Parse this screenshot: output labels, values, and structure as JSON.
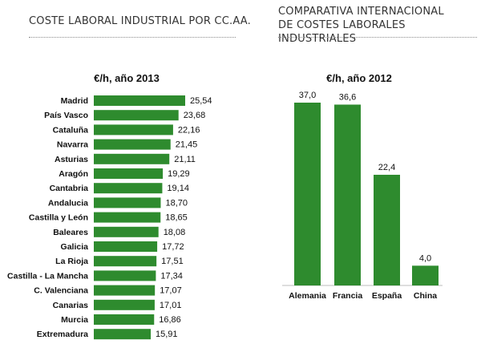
{
  "left_panel": {
    "heading": "COSTE LABORAL INDUSTRIAL POR CC.AA."
  },
  "right_panel": {
    "heading_line1": "COMPARATIVA INTERNACIONAL",
    "heading_line2": "DE COSTES LABORALES INDUSTRIALES"
  },
  "bar_color": "#2e8b2e",
  "chart_data": [
    {
      "type": "bar",
      "orientation": "horizontal",
      "title": "€/h, año 2013",
      "categories": [
        "Madrid",
        "País Vasco",
        "Cataluña",
        "Navarra",
        "Asturias",
        "Aragón",
        "Cantabria",
        "Andalucia",
        "Castilla y León",
        "Baleares",
        "Galicia",
        "La Rioja",
        "Castilla  - La Mancha",
        "C. Valenciana",
        "Canarias",
        "Murcia",
        "Extremadura"
      ],
      "values": [
        25.54,
        23.68,
        22.16,
        21.45,
        21.11,
        19.29,
        19.14,
        18.7,
        18.65,
        18.08,
        17.72,
        17.51,
        17.34,
        17.07,
        17.01,
        16.86,
        15.91
      ],
      "value_labels": [
        "25,54",
        "23,68",
        "22,16",
        "21,45",
        "21,11",
        "19,29",
        "19,14",
        "18,70",
        "18,65",
        "18,08",
        "17,72",
        "17,51",
        "17,34",
        "17,07",
        "17,01",
        "16,86",
        "15,91"
      ],
      "xlim": [
        0,
        25.54
      ],
      "grid": false
    },
    {
      "type": "bar",
      "orientation": "vertical",
      "title": "€/h, año 2012",
      "categories": [
        "Alemania",
        "Francia",
        "España",
        "China"
      ],
      "values": [
        37.0,
        36.6,
        22.4,
        4.0
      ],
      "value_labels": [
        "37,0",
        "36,6",
        "22,4",
        "4,0"
      ],
      "ylim": [
        0,
        37.0
      ],
      "grid": false
    }
  ]
}
